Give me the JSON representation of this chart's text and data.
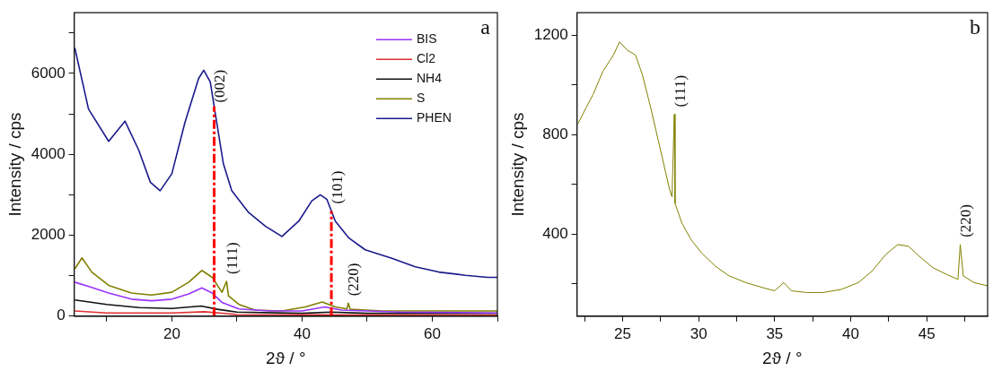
{
  "chart_data": [
    {
      "type": "line",
      "xlabel": "2ϑ / °",
      "ylabel": "Intensity / cps",
      "legend": "top right",
      "marker": "none",
      "xlim": [
        5,
        70
      ],
      "xticks": [
        {
          "value": 10,
          "label": null
        },
        20,
        {
          "value": 30,
          "label": null
        },
        40,
        {
          "value": 50,
          "label": null
        },
        60,
        {
          "value": 70,
          "label": null
        }
      ],
      "ylim": [
        0,
        7500
      ],
      "yticks": [
        0,
        {
          "value": 1000,
          "label": null
        },
        2000,
        {
          "value": 3000,
          "label": null
        },
        4000,
        {
          "value": 5000,
          "label": null
        },
        6000,
        {
          "value": 7000,
          "label": null
        }
      ],
      "series": [
        {
          "name": "BIS",
          "color": "#9933ff",
          "x": [
            5.1,
            7.7,
            10.3,
            13.8,
            16.9,
            20,
            22.6,
            24.6,
            26.2,
            27.7,
            30.3,
            35,
            40,
            43.5,
            46,
            55,
            70
          ],
          "values": [
            840,
            710,
            570,
            420,
            380,
            420,
            550,
            700,
            570,
            340,
            180,
            130,
            130,
            230,
            150,
            100,
            80
          ]
        },
        {
          "name": "Cl2",
          "color": "#e03030",
          "x": [
            5.1,
            10,
            20,
            25,
            30,
            70
          ],
          "values": [
            130,
            80,
            80,
            110,
            40,
            20
          ]
        },
        {
          "name": "NH4",
          "color": "#111111",
          "x": [
            5.1,
            10,
            15,
            20,
            24.5,
            27,
            30,
            40,
            44.4,
            50,
            70
          ],
          "values": [
            400,
            290,
            210,
            190,
            250,
            170,
            100,
            70,
            100,
            70,
            70
          ]
        },
        {
          "name": "S",
          "color": "#808000",
          "x": [
            5.1,
            6.2,
            7.7,
            10.3,
            13.8,
            16.9,
            20,
            22.6,
            24.6,
            26.2,
            27.7,
            28.4,
            28.7,
            30.3,
            32.8,
            36.9,
            40.5,
            43.1,
            45.1,
            46.9,
            47.1,
            47.4,
            52.3,
            60,
            70
          ],
          "values": [
            1170,
            1440,
            1090,
            760,
            570,
            520,
            590,
            840,
            1130,
            960,
            590,
            860,
            500,
            290,
            150,
            130,
            230,
            350,
            230,
            180,
            320,
            170,
            130,
            130,
            130
          ]
        },
        {
          "name": "PHEN",
          "color": "#1a1a8c",
          "x": [
            5.1,
            7.2,
            10.3,
            12.8,
            14.9,
            16.7,
            18.2,
            20,
            22,
            24.1,
            24.9,
            25.9,
            26.9,
            27.9,
            29.2,
            31.8,
            34.4,
            36.9,
            39.5,
            41.5,
            42.8,
            43.8,
            45.1,
            47.2,
            49.7,
            53.8,
            57.4,
            61,
            65.1,
            68.5,
            70
          ],
          "values": [
            6630,
            5120,
            4320,
            4820,
            4110,
            3310,
            3100,
            3520,
            4780,
            5870,
            6080,
            5790,
            4780,
            3780,
            3100,
            2560,
            2220,
            1970,
            2350,
            2850,
            3000,
            2890,
            2350,
            1930,
            1640,
            1430,
            1220,
            1090,
            1010,
            960,
            960
          ]
        }
      ],
      "ref_lines": [
        {
          "axis": "x",
          "value": 26.5,
          "color": "#ff0000",
          "line_style": "dashed"
        },
        {
          "axis": "x",
          "value": 44.5,
          "color": "#ff0000",
          "line_style": "dashed"
        }
      ],
      "annotations": [
        "a",
        {
          "text": "(002)",
          "x": 26.5,
          "y": 5100
        },
        {
          "text": "(111)",
          "x": 28.4,
          "y": 860
        },
        {
          "text": "(101)",
          "x": 44.5,
          "y": 2600
        },
        {
          "text": "(220)",
          "x": 47.1,
          "y": 320
        }
      ]
    },
    {
      "type": "line",
      "xlabel": "2ϑ / °",
      "ylabel": "Intensity / cps",
      "marker": "none",
      "xlim": [
        22,
        49
      ],
      "xticks": [
        {
          "value": 22.5,
          "label": null
        },
        25,
        {
          "value": 27.5,
          "label": null
        },
        30,
        {
          "value": 32.5,
          "label": null
        },
        35,
        {
          "value": 37.5,
          "label": null
        },
        40,
        {
          "value": 42.5,
          "label": null
        },
        45,
        {
          "value": 47.5,
          "label": null
        }
      ],
      "ylim": [
        70,
        1290
      ],
      "yticks": [
        {
          "value": 200,
          "label": null
        },
        400,
        {
          "value": 600,
          "label": null
        },
        800,
        {
          "value": 1000,
          "label": null
        },
        1200
      ],
      "series": [
        {
          "color": "#808000",
          "x": [
            22.05,
            22.6,
            23.06,
            23.7,
            24.4,
            24.8,
            25.3,
            25.85,
            26.3,
            26.85,
            27.5,
            28.1,
            28.25,
            28.4,
            28.45,
            28.9,
            29.5,
            30.2,
            31.1,
            32,
            33.1,
            34.2,
            35,
            35.6,
            36.1,
            37.1,
            38.2,
            39.4,
            40.5,
            41.4,
            42.3,
            43.1,
            43.8,
            44.5,
            45.4,
            46.3,
            47.05,
            47.2,
            47.4,
            48.1,
            49
          ],
          "values": [
            842,
            908,
            961,
            1054,
            1120,
            1173,
            1140,
            1120,
            1041,
            908,
            736,
            577,
            550,
            882,
            523,
            444,
            378,
            324,
            271,
            232,
            205,
            185,
            172,
            205,
            172,
            165,
            165,
            178,
            205,
            251,
            318,
            358,
            351,
            311,
            265,
            238,
            218,
            358,
            232,
            205,
            192
          ]
        }
      ],
      "annotations": [
        "b",
        {
          "text": "(111)",
          "x": 28.4,
          "y": 882
        },
        {
          "text": "(220)",
          "x": 47.2,
          "y": 358
        }
      ]
    }
  ]
}
